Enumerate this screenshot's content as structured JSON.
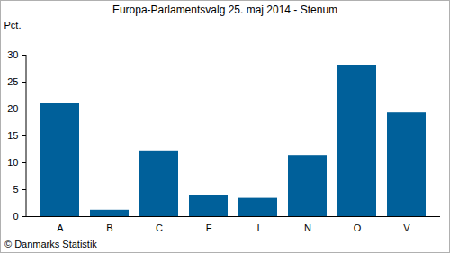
{
  "chart_data": {
    "type": "bar",
    "title": "Europa-Parlamentsvalg 25. maj 2014 - Stenum",
    "y_label": "Pct.",
    "caption": "© Danmarks Statistik",
    "categories": [
      "A",
      "B",
      "C",
      "F",
      "I",
      "N",
      "O",
      "V"
    ],
    "values": [
      21.0,
      1.2,
      12.2,
      4.0,
      3.4,
      11.3,
      28.1,
      19.3
    ],
    "color": "#00609a",
    "ylim": [
      0,
      30
    ],
    "yticks": [
      0,
      5,
      10,
      15,
      20,
      25,
      30
    ],
    "grid": false
  }
}
